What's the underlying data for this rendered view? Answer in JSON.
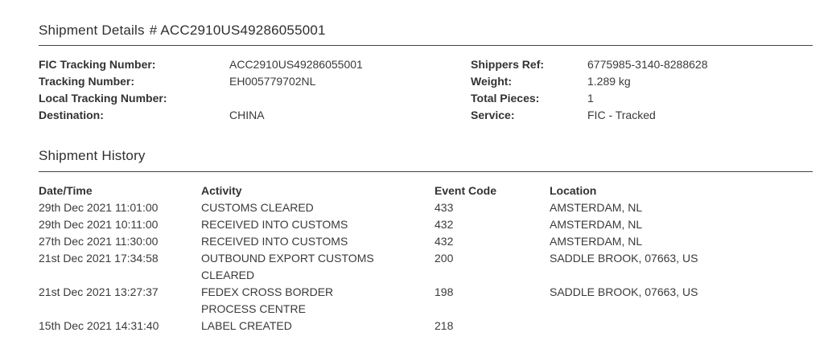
{
  "page": {
    "title": "Shipment Details",
    "title_number": "# ACC2910US49286055001"
  },
  "details": {
    "rows": [
      {
        "l_label": "FIC Tracking Number:",
        "l_value": "ACC2910US49286055001",
        "r_label": "Shippers Ref:",
        "r_value": "6775985-3140-8288628"
      },
      {
        "l_label": "Tracking Number:",
        "l_value": "EH005779702NL",
        "r_label": "Weight:",
        "r_value": "1.289 kg"
      },
      {
        "l_label": "Local Tracking Number:",
        "l_value": "",
        "r_label": "Total Pieces:",
        "r_value": "1"
      },
      {
        "l_label": "Destination:",
        "l_value": "CHINA",
        "r_label": "Service:",
        "r_value": "FIC - Tracked"
      }
    ]
  },
  "history": {
    "heading": "Shipment History",
    "columns": [
      "Date/Time",
      "Activity",
      "Event Code",
      "Location"
    ],
    "rows": [
      {
        "datetime": "29th Dec 2021 11:01:00",
        "activity": "CUSTOMS CLEARED",
        "event_code": "433",
        "location": "AMSTERDAM, NL"
      },
      {
        "datetime": "29th Dec 2021 10:11:00",
        "activity": "RECEIVED INTO CUSTOMS",
        "event_code": "432",
        "location": "AMSTERDAM, NL"
      },
      {
        "datetime": "27th Dec 2021 11:30:00",
        "activity": "RECEIVED INTO CUSTOMS",
        "event_code": "432",
        "location": "AMSTERDAM, NL"
      },
      {
        "datetime": "21st Dec 2021 17:34:58",
        "activity": "OUTBOUND EXPORT CUSTOMS CLEARED",
        "event_code": "200",
        "location": "SADDLE BROOK, 07663, US"
      },
      {
        "datetime": "21st Dec 2021 13:27:37",
        "activity": "FEDEX CROSS BORDER PROCESS CENTRE",
        "event_code": "198",
        "location": "SADDLE BROOK, 07663, US"
      },
      {
        "datetime": "15th Dec 2021 14:31:40",
        "activity": "LABEL CREATED",
        "event_code": "218",
        "location": ""
      }
    ]
  }
}
